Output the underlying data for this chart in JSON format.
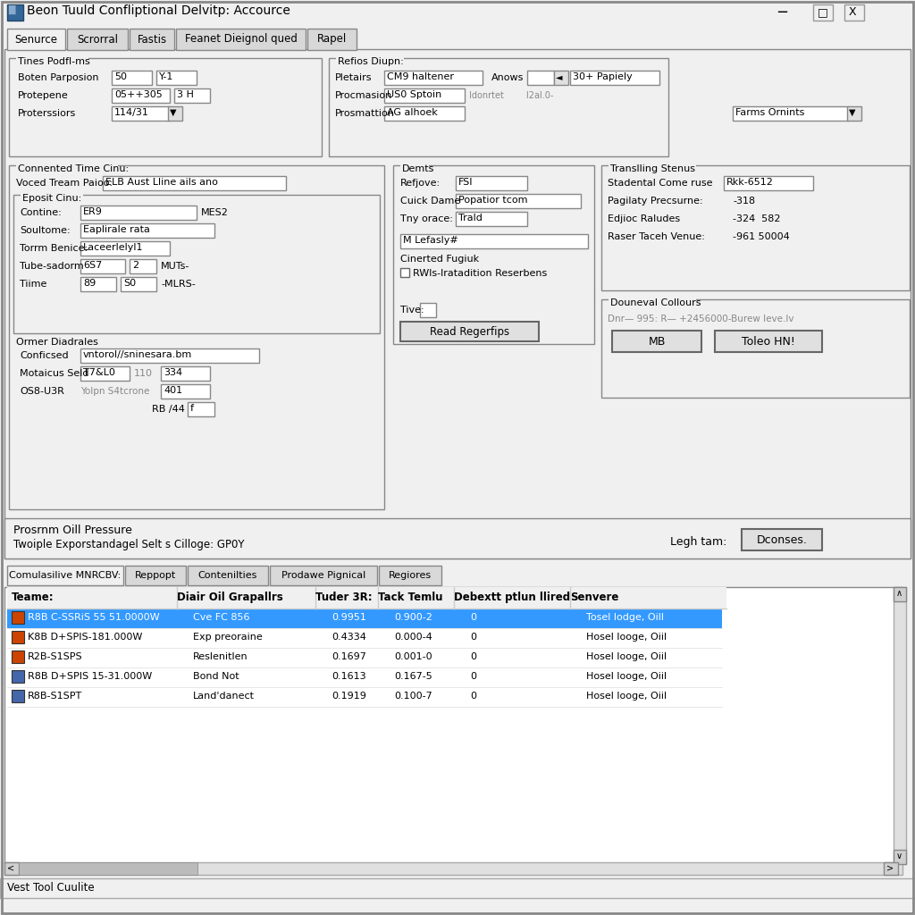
{
  "title": "Beon Tuuld Confliptional Delvitp: Accource",
  "bg_color": "#f0f0f0",
  "window_bg": "#ffffff",
  "tabs_row1": [
    "Senurce",
    "Scrorral",
    "Fastis",
    "Feanet Dieignol qued",
    "Rapel"
  ],
  "section1_title": "Tines Podfl-ms",
  "boten_parposion_label": "Boten Parposion",
  "boten_parposion_val1": "50",
  "boten_parposion_val2": "Y-1",
  "protepene_label": "Protepene",
  "protepene_val": "05++305",
  "protepene_val2": "3 H",
  "proterssiors_label": "Proterssiors",
  "proterssiors_val": "114/31",
  "section2_title": "Refios Diupn:",
  "pletairs_label": "Pletairs",
  "pletairs_val": "CM9 haltener",
  "anows_label": "Anows",
  "anows_val": "30+ Papiely",
  "procmasion_label": "Procmasion",
  "procmasion_val": "US0 Sptoin",
  "procmasion_sub": "Idonrtet        I2al.0-",
  "prosmattion_label": "Prosmattion",
  "prosmattion_val": "AG alhoek",
  "farms_val": "Farms Ornints",
  "connected_time_title": "Connented Time Cinu:",
  "voced_label": "Voced Tream Paioo:",
  "voced_val": "ELB Aust Lline ails ano",
  "eposit_title": "Eposit Cinu:",
  "contine_label": "Contine:",
  "contine_val": "ER9",
  "contine_val2": "MES2",
  "soultome_label": "Soultome:",
  "soultome_val": "Eaplirale rata",
  "torrm_label": "Torrm Benice:",
  "torrm_val": "Laceerlelyl1",
  "tube_label": "Tube-sadorm",
  "tube_val1": "6S7",
  "tube_val2": "2",
  "tube_val3": "MUTs-",
  "time_label": "Tiime",
  "time_val1": "89",
  "time_val2": "S0",
  "time_val3": "-MLRS-",
  "ormer_title": "Ormer Diadrales",
  "conficsed_label": "Conficsed",
  "conficsed_val": "vntorol//sninesara.bm",
  "motaicus_label": "Motaicus Seld",
  "motaicus_val1": "T7&L0",
  "motaicus_val2": "110",
  "motaicus_val3": "334",
  "os8_label": "OS8-U3R",
  "os8_sub": "Yolpn S4tcrone",
  "os8_val": "401",
  "rb_val": "RB /44",
  "rb_small": "f",
  "demts_title": "Demts",
  "refjove_label": "Refjove:",
  "refjove_val": "FSI",
  "cuick_label": "Cuick Dame",
  "cuick_val": "Popatior tcom",
  "tny_label": "Tny orace:",
  "tny_val": "Trald",
  "m_lefasly_val": "M Lefasly#",
  "cinerted_title": "Cinerted Fugiuk",
  "rwls_checkbox": "RWls-lratadition Reserbens",
  "tive_label": "Tive:",
  "read_btn": "Read Regerfips",
  "translling_title": "Translling Stenus",
  "stadental_label": "Stadental Come ruse",
  "stadental_val": "Rkk-6512",
  "pagilaty_label": "Pagilaty Precsurne:",
  "pagilaty_val": "-318",
  "edjioc_label": "Edjioc Raludes",
  "edjioc_val": "-324  582",
  "raser_label": "Raser Taceh Venue:",
  "raser_val": "-961 50004",
  "douneval_title": "Douneval Collours",
  "douneval_text": "Dnr— 995: R— +2456000-Burew leve.lv",
  "mb_btn": "MB",
  "toleo_btn": "Toleo HN!",
  "prosrnm_label": "Prosrnm Oill Pressure",
  "twoiple_label": "Twoiple Exporstandagel Selt s Cilloge: GP0Y",
  "legh_label": "Legh tam:",
  "dconses_btn": "Dconses.",
  "tabs_row2": [
    "Comulasilive MNRCBV:",
    "Reppopt",
    "Contenilties",
    "Prodawe Pignical",
    "Regiores"
  ],
  "table_headers": [
    "Teame:",
    "Diair Oil Grapallrs",
    "Tuder 3R:",
    "Tack Temlu",
    "Debextt ptlun llired",
    "Senvere"
  ],
  "table_rows": [
    {
      "icon_color": "#cc4400",
      "name": "R8B C-SSRiS 55 51.0000W",
      "diair": "Cve FC 856",
      "tuder": "0.9951",
      "tack": "0.900-2",
      "debextt": "0",
      "senvere": "Tosel lodge, Oill",
      "selected": true
    },
    {
      "icon_color": "#cc4400",
      "name": "K8B D+SPIS-181.000W",
      "diair": "Exp preoraine",
      "tuder": "0.4334",
      "tack": "0.000-4",
      "debextt": "0",
      "senvere": "Hosel looge, Oiil",
      "selected": false
    },
    {
      "icon_color": "#cc4400",
      "name": "R2B-S1SPS",
      "diair": "Reslenitlen",
      "tuder": "0.1697",
      "tack": "0.001-0",
      "debextt": "0",
      "senvere": "Hosel looge, Oiil",
      "selected": false
    },
    {
      "icon_color": "#4466aa",
      "name": "R8B D+SPIS 15-31.000W",
      "diair": "Bond Not",
      "tuder": "0.1613",
      "tack": "0.167-5",
      "debextt": "0",
      "senvere": "Hosel looge, Oiil",
      "selected": false
    },
    {
      "icon_color": "#4466aa",
      "name": "R8B-S1SPT",
      "diair": "Land'danect",
      "tuder": "0.1919",
      "tack": "0.100-7",
      "debextt": "0",
      "senvere": "Hosel looge, Oiil",
      "selected": false
    }
  ],
  "status_bar": "Vest Tool Cuulite",
  "selected_row_color": "#3399ff",
  "selected_text_color": "#ffffff",
  "normal_text_color": "#000000",
  "border_color": "#999999",
  "input_bg": "#ffffff",
  "panel_bg": "#f0f0f0",
  "scrollbar_color": "#c0c0c0"
}
